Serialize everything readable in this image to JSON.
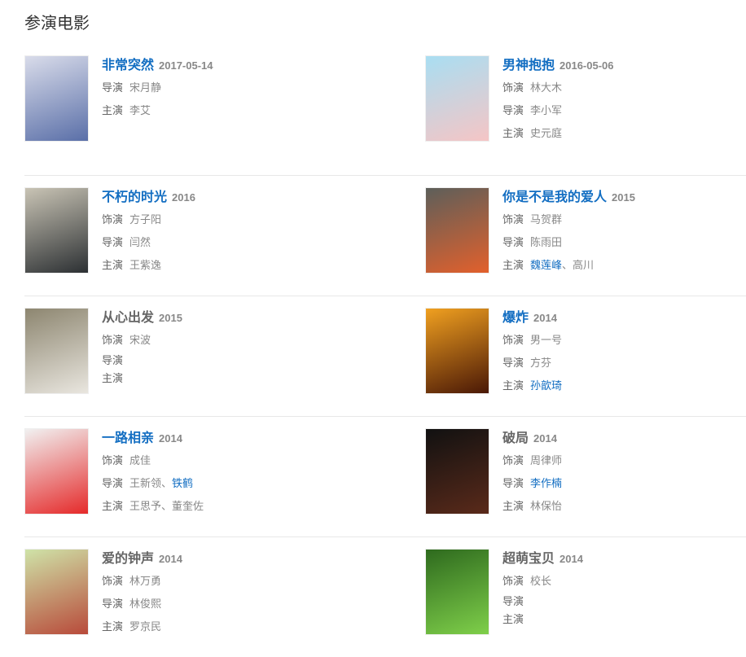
{
  "section_title": "参演电影",
  "colors": {
    "link": "#136ec2",
    "text": "#666666"
  },
  "movies": [
    {
      "title": "非常突然",
      "year": "2017-05-14",
      "title_link": true,
      "poster": [
        "#d9dcea",
        "#5a6fa8"
      ],
      "lines": [
        {
          "label": "导演",
          "names": [
            {
              "n": "宋月静"
            }
          ]
        },
        {
          "label": "主演",
          "names": [
            {
              "n": "李艾"
            }
          ]
        }
      ]
    },
    {
      "title": "男神抱抱",
      "year": "2016-05-06",
      "title_link": true,
      "poster": [
        "#a9def2",
        "#f5c5c5"
      ],
      "lines": [
        {
          "label": "饰演",
          "names": [
            {
              "n": "林大木"
            }
          ]
        },
        {
          "label": "导演",
          "names": [
            {
              "n": "李小军"
            }
          ]
        },
        {
          "label": "主演",
          "names": [
            {
              "n": "史元庭"
            }
          ]
        }
      ]
    },
    {
      "title": "不朽的时光",
      "year": "2016",
      "title_link": true,
      "poster": [
        "#c9c4b5",
        "#2c3033"
      ],
      "lines": [
        {
          "label": "饰演",
          "names": [
            {
              "n": "方子阳"
            }
          ]
        },
        {
          "label": "导演",
          "names": [
            {
              "n": "闫然"
            }
          ]
        },
        {
          "label": "主演",
          "names": [
            {
              "n": "王紫逸"
            }
          ]
        }
      ]
    },
    {
      "title": "你是不是我的爱人",
      "year": "2015",
      "title_link": true,
      "poster": [
        "#5d5f5a",
        "#e2602c"
      ],
      "lines": [
        {
          "label": "饰演",
          "names": [
            {
              "n": "马贺群"
            }
          ]
        },
        {
          "label": "导演",
          "names": [
            {
              "n": "陈雨田"
            }
          ]
        },
        {
          "label": "主演",
          "names": [
            {
              "n": "魏莲峰",
              "link": true
            },
            {
              "n": "高川"
            }
          ]
        }
      ]
    },
    {
      "title": "从心出发",
      "year": "2015",
      "title_link": false,
      "poster": [
        "#8d8670",
        "#e9e6df"
      ],
      "lines": [
        {
          "label": "饰演",
          "names": [
            {
              "n": "宋波"
            }
          ]
        },
        {
          "label": "导演",
          "names": []
        },
        {
          "label": "主演",
          "names": []
        }
      ]
    },
    {
      "title": "爆炸",
      "year": "2014",
      "title_link": true,
      "poster": [
        "#f0a020",
        "#4a1806"
      ],
      "lines": [
        {
          "label": "饰演",
          "names": [
            {
              "n": "男一号"
            }
          ]
        },
        {
          "label": "导演",
          "names": [
            {
              "n": "方芬"
            }
          ]
        },
        {
          "label": "主演",
          "names": [
            {
              "n": "孙歆琦",
              "link": true
            }
          ]
        }
      ]
    },
    {
      "title": "一路相亲",
      "year": "2014",
      "title_link": true,
      "poster": [
        "#f1f1f1",
        "#e52a2a"
      ],
      "lines": [
        {
          "label": "饰演",
          "names": [
            {
              "n": "成佳"
            }
          ]
        },
        {
          "label": "导演",
          "names": [
            {
              "n": "王新领"
            },
            {
              "n": "铁鹤",
              "link": true
            }
          ]
        },
        {
          "label": "主演",
          "names": [
            {
              "n": "王思予"
            },
            {
              "n": "董奎佐"
            }
          ]
        }
      ]
    },
    {
      "title": "破局",
      "year": "2014",
      "title_link": false,
      "poster": [
        "#111111",
        "#5a2a1a"
      ],
      "lines": [
        {
          "label": "饰演",
          "names": [
            {
              "n": "周律师"
            }
          ]
        },
        {
          "label": "导演",
          "names": [
            {
              "n": "李作楠",
              "link": true
            }
          ]
        },
        {
          "label": "主演",
          "names": [
            {
              "n": "林保怡"
            }
          ]
        }
      ]
    },
    {
      "title": "爱的钟声",
      "year": "2014",
      "title_link": false,
      "poster": [
        "#cfe3a8",
        "#b84a3a"
      ],
      "lines": [
        {
          "label": "饰演",
          "names": [
            {
              "n": "林万勇"
            }
          ]
        },
        {
          "label": "导演",
          "names": [
            {
              "n": "林俊熙"
            }
          ]
        },
        {
          "label": "主演",
          "names": [
            {
              "n": "罗京民"
            }
          ]
        }
      ]
    },
    {
      "title": "超萌宝贝",
      "year": "2014",
      "title_link": false,
      "poster": [
        "#2e6a1e",
        "#7fcf4a"
      ],
      "lines": [
        {
          "label": "饰演",
          "names": [
            {
              "n": "校长"
            }
          ]
        },
        {
          "label": "导演",
          "names": []
        },
        {
          "label": "主演",
          "names": []
        }
      ]
    }
  ]
}
